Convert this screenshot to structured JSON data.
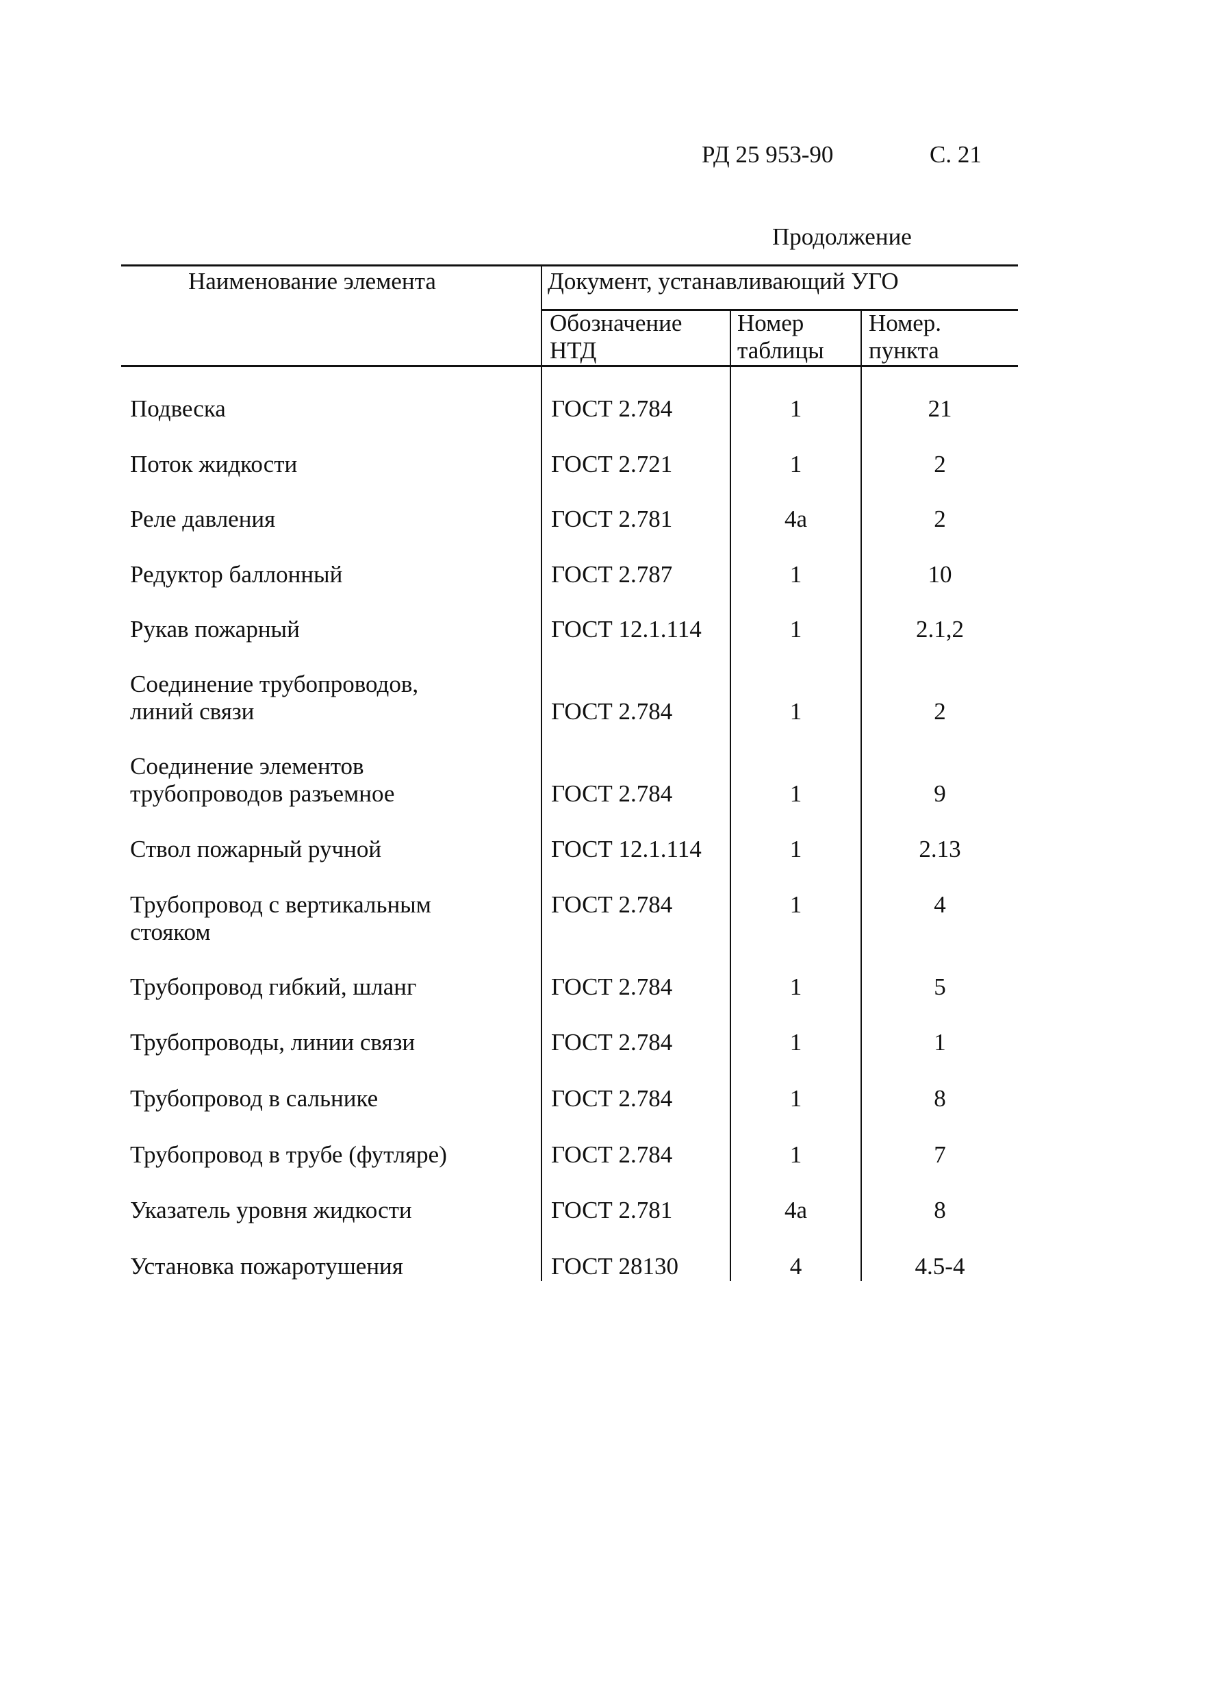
{
  "header": {
    "doc": "РД 25   953-90",
    "page": "С. 21"
  },
  "continuation": "Продолжение",
  "table": {
    "col_name": "Наименование элемента",
    "col_doc": "Документ, устанавливающий УГО",
    "sub": [
      [
        "Обозначение",
        "НТД"
      ],
      [
        "Номер",
        "таблицы"
      ],
      [
        "Номер.",
        "пункта"
      ]
    ],
    "rows": [
      {
        "name": [
          "Подвеска"
        ],
        "ntd": "ГОСТ 2.784",
        "table": "1",
        "item": "21"
      },
      {
        "name": [
          "Поток жидкости"
        ],
        "ntd": "ГОСТ 2.721",
        "table": "1",
        "item": "2"
      },
      {
        "name": [
          "Реле давления"
        ],
        "ntd": "ГОСТ 2.781",
        "table": "4а",
        "item": "2"
      },
      {
        "name": [
          "Редуктор баллонный"
        ],
        "ntd": "ГОСТ 2.787",
        "table": "1",
        "item": "10"
      },
      {
        "name": [
          "Рукав пожарный"
        ],
        "ntd": "ГОСТ 12.1.114",
        "table": "1",
        "item": "2.1,2"
      },
      {
        "name": [
          "Соединение трубопроводов,",
          "линий связи"
        ],
        "ntd": "ГОСТ 2.784",
        "table": "1",
        "item": "2"
      },
      {
        "name": [
          "Соединение элементов",
          "трубопроводов разъемное"
        ],
        "ntd": "ГОСТ 2.784",
        "table": "1",
        "item": "9"
      },
      {
        "name": [
          "Ствол пожарный ручной"
        ],
        "ntd": "ГОСТ 12.1.114",
        "table": "1",
        "item": "2.13"
      },
      {
        "name": [
          "Трубопровод с вертикальным",
          "стояком"
        ],
        "ntd": "ГОСТ 2.784",
        "table": "1",
        "item": "4"
      },
      {
        "name": [
          "Трубопровод гибкий, шланг"
        ],
        "ntd": "ГОСТ 2.784",
        "table": "1",
        "item": "5"
      },
      {
        "name": [
          "Трубопроводы, линии связи"
        ],
        "ntd": "ГОСТ 2.784",
        "table": "1",
        "item": "1"
      },
      {
        "name": [
          "Трубопровод в сальнике"
        ],
        "ntd": "ГОСТ 2.784",
        "table": "1",
        "item": "8"
      },
      {
        "name": [
          "Трубопровод в трубе (футляре)"
        ],
        "ntd": "ГОСТ 2.784",
        "table": "1",
        "item": "7"
      },
      {
        "name": [
          "Указатель уровня жидкости"
        ],
        "ntd": "ГОСТ 2.781",
        "table": "4а",
        "item": "8"
      },
      {
        "name": [
          "Установка пожаротушения"
        ],
        "ntd": "ГОСТ 28130",
        "table": "4",
        "item": "4.5-4"
      }
    ]
  }
}
